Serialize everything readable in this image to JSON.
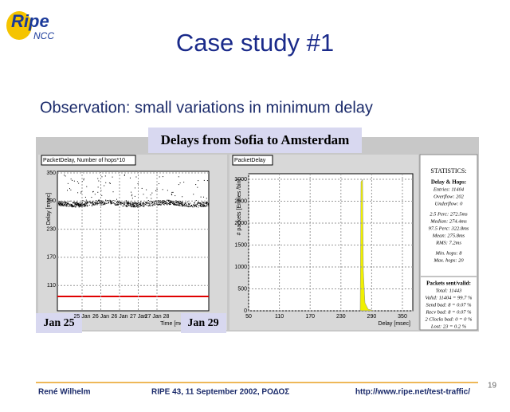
{
  "header": {
    "logo": "Ripe",
    "logo_sub": "NCC",
    "title": "Case study #1"
  },
  "observation": "Observation:  small variations in minimum delay",
  "figure_title": "Delays from Sofia to Amsterdam",
  "left_plot": {
    "label": "PacketDelay, Number of hops*10",
    "y_label": "Delay [msec]",
    "yticks": [
      350,
      290,
      230,
      170,
      110
    ],
    "xticks": [
      "25 Jan",
      "26 Jan",
      "26 Jan",
      "27 Jan",
      "27 Jan 28"
    ],
    "x_label": "Time [mo"
  },
  "annotations": [
    "Jan 25",
    "Jan 29"
  ],
  "right_plot": {
    "label": "PacketDelay",
    "y_label": "# packets [Entries /bin]",
    "yticks": [
      3000,
      2500,
      2000,
      1500,
      1000,
      500,
      0
    ],
    "xticks": [
      50,
      110,
      170,
      230,
      290,
      350
    ],
    "x_label": "Delay [msec]"
  },
  "stats": {
    "title": "STATISTICS:",
    "section1": "Delay & Hops:",
    "lines1": [
      "Entries: 11404",
      "Overflow: 202",
      "Underflow: 0",
      "2.5 Perc:   272.5ms",
      "Median:   274.4ms",
      "97.5 Perc:   322.8ms",
      "Mean:   275.8ms",
      "RMS:     7.2ms",
      "Min. hops: 8",
      "Max. hops: 20"
    ],
    "section2": "Packets sent/valid:",
    "lines2": [
      "Total: 11443",
      "Valid: 11404 = 99.7 %",
      "Send bad: 8 = 0.07 %",
      "Recv bad: 8 = 0.07 %",
      "2 Clocks bad: 0 = 0 %",
      "Lost: 23 = 0.2 %"
    ]
  },
  "footer": {
    "author": "René Wilhelm",
    "event": "RIPE 43, 11 September 2002, ΡΟΔΟΣ",
    "url": "http://www.ripe.net/test-traffic/",
    "page": 19
  }
}
